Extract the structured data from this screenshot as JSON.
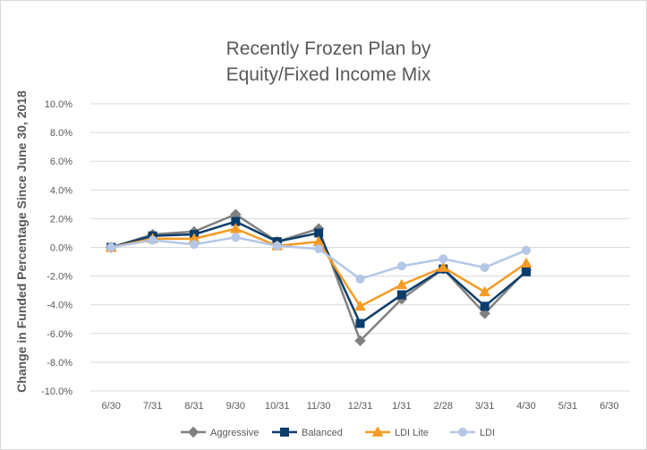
{
  "chart_data": {
    "type": "line",
    "title_lines": [
      "Recently Frozen Plan by",
      "Equity/Fixed Income Mix"
    ],
    "ylabel": "Change in Funded Percentage Since June 30, 2018",
    "xlabel": "",
    "categories": [
      "6/30",
      "7/31",
      "8/31",
      "9/30",
      "10/31",
      "11/30",
      "12/31",
      "1/31",
      "2/28",
      "3/31",
      "4/30",
      "5/31",
      "6/30"
    ],
    "y_ticks": [
      "10.0%",
      "8.0%",
      "6.0%",
      "4.0%",
      "2.0%",
      "0.0%",
      "-2.0%",
      "-4.0%",
      "-6.0%",
      "-8.0%",
      "-10.0%"
    ],
    "ylim": [
      -10,
      10
    ],
    "grid": true,
    "legend_position": "bottom",
    "series": [
      {
        "name": "Aggressive",
        "color": "#808080",
        "marker": "diamond",
        "values": [
          0.0,
          0.9,
          1.1,
          2.3,
          0.4,
          1.3,
          -6.5,
          -3.6,
          -1.5,
          -4.6,
          -1.6,
          null,
          null
        ]
      },
      {
        "name": "Balanced",
        "color": "#0b3d6b",
        "marker": "square",
        "values": [
          0.0,
          0.8,
          0.9,
          1.8,
          0.4,
          1.0,
          -5.3,
          -3.3,
          -1.5,
          -4.1,
          -1.7,
          null,
          null
        ]
      },
      {
        "name": "LDI Lite",
        "color": "#f59a23",
        "marker": "triangle",
        "values": [
          0.0,
          0.6,
          0.6,
          1.3,
          0.1,
          0.4,
          -4.1,
          -2.6,
          -1.4,
          -3.1,
          -1.1,
          null,
          null
        ]
      },
      {
        "name": "LDI",
        "color": "#b4c7e7",
        "marker": "circle",
        "values": [
          0.0,
          0.5,
          0.2,
          0.7,
          0.1,
          -0.1,
          -2.2,
          -1.3,
          -0.8,
          -1.4,
          -0.2,
          null,
          null
        ]
      }
    ]
  }
}
